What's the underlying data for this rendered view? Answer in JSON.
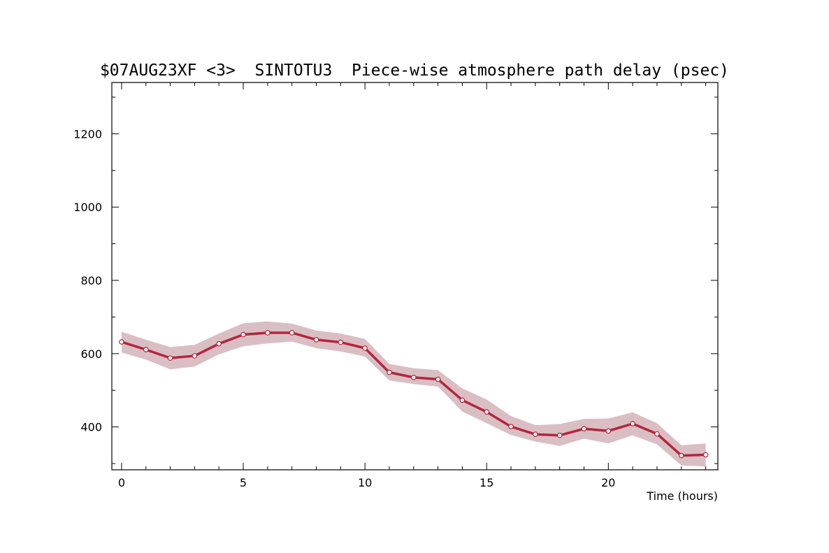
{
  "chart_data": {
    "type": "line",
    "title": "$07AUG23XF <3>  SINTOTU3  Piece-wise atmosphere path delay (psec)",
    "xlabel": "Time (hours)",
    "ylabel": "",
    "xlim": [
      -0.4,
      24.5
    ],
    "ylim": [
      283,
      1340
    ],
    "x_ticks": [
      0,
      5,
      10,
      15,
      20
    ],
    "y_ticks": [
      400,
      600,
      800,
      1000,
      1200
    ],
    "grid": false,
    "colors": {
      "line": "#b5243f",
      "band": "#d9bfc3",
      "marker_fill": "#ffffff",
      "axes": "#000000"
    },
    "series": [
      {
        "x": [
          0,
          1,
          2,
          3,
          4,
          5,
          6,
          7,
          8,
          9,
          10,
          11,
          12,
          13,
          14,
          15,
          16,
          17,
          18,
          19,
          20,
          21,
          22,
          23,
          24
        ],
        "values": [
          632,
          611,
          588,
          594,
          627,
          652,
          657,
          657,
          638,
          631,
          615,
          549,
          535,
          530,
          473,
          441,
          401,
          380,
          377,
          395,
          389,
          409,
          381,
          322,
          324
        ],
        "upper": [
          660,
          638,
          618,
          624,
          655,
          683,
          688,
          682,
          663,
          655,
          640,
          572,
          560,
          555,
          505,
          475,
          430,
          405,
          408,
          422,
          423,
          440,
          410,
          350,
          355
        ],
        "lower": [
          603,
          584,
          557,
          565,
          598,
          620,
          628,
          633,
          615,
          606,
          592,
          527,
          517,
          510,
          442,
          410,
          378,
          360,
          348,
          368,
          355,
          377,
          352,
          295,
          292
        ]
      }
    ]
  }
}
